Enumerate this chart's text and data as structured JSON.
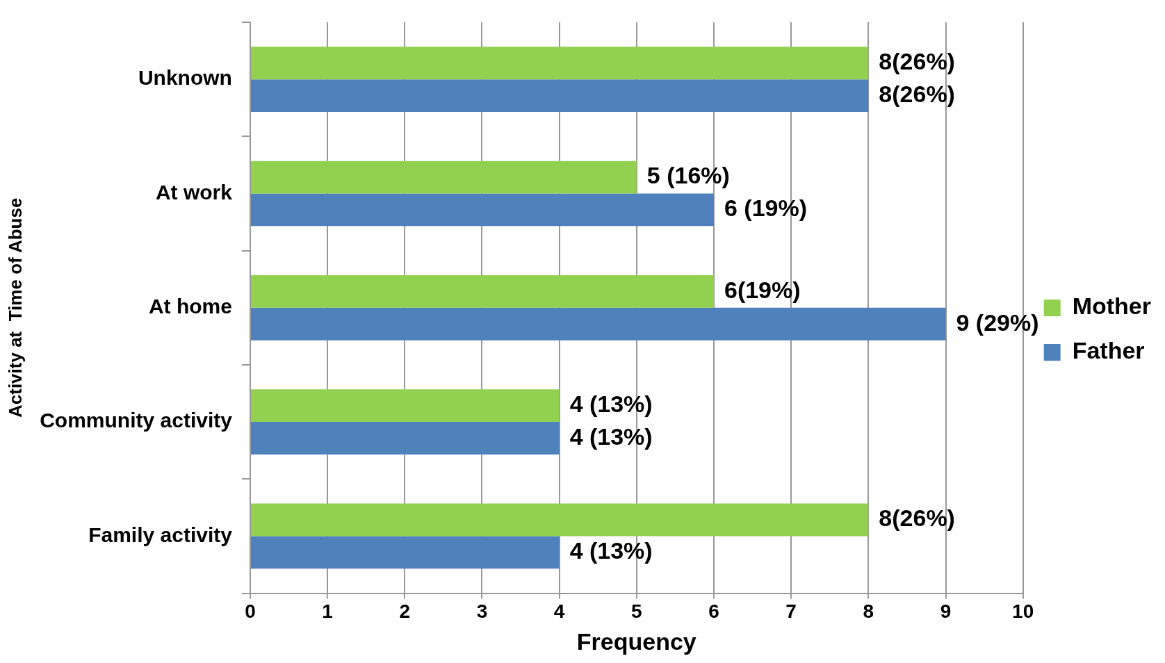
{
  "chart_data": {
    "type": "bar",
    "orientation": "horizontal",
    "xlabel": "Frequency",
    "ylabel": "Activity at  Time of Abuse",
    "categories": [
      "Unknown",
      "At work",
      "At home",
      "Community activity",
      "Family activity"
    ],
    "series": [
      {
        "name": "Mother",
        "color": "#92d050",
        "values": [
          8,
          5,
          6,
          4,
          8
        ],
        "value_labels": [
          "8(26%)",
          "5 (16%)",
          "6(19%)",
          "4 (13%)",
          "8(26%)"
        ]
      },
      {
        "name": "Father",
        "color": "#4f81bd",
        "values": [
          8,
          6,
          9,
          4,
          4
        ],
        "value_labels": [
          "8(26%)",
          "6 (19%)",
          "9 (29%)",
          "4 (13%)",
          "4 (13%)"
        ]
      }
    ],
    "xlim": [
      0,
      10
    ],
    "xticks": [
      0,
      1,
      2,
      3,
      4,
      5,
      6,
      7,
      8,
      9,
      10
    ],
    "grid": "x",
    "legend": "right"
  }
}
